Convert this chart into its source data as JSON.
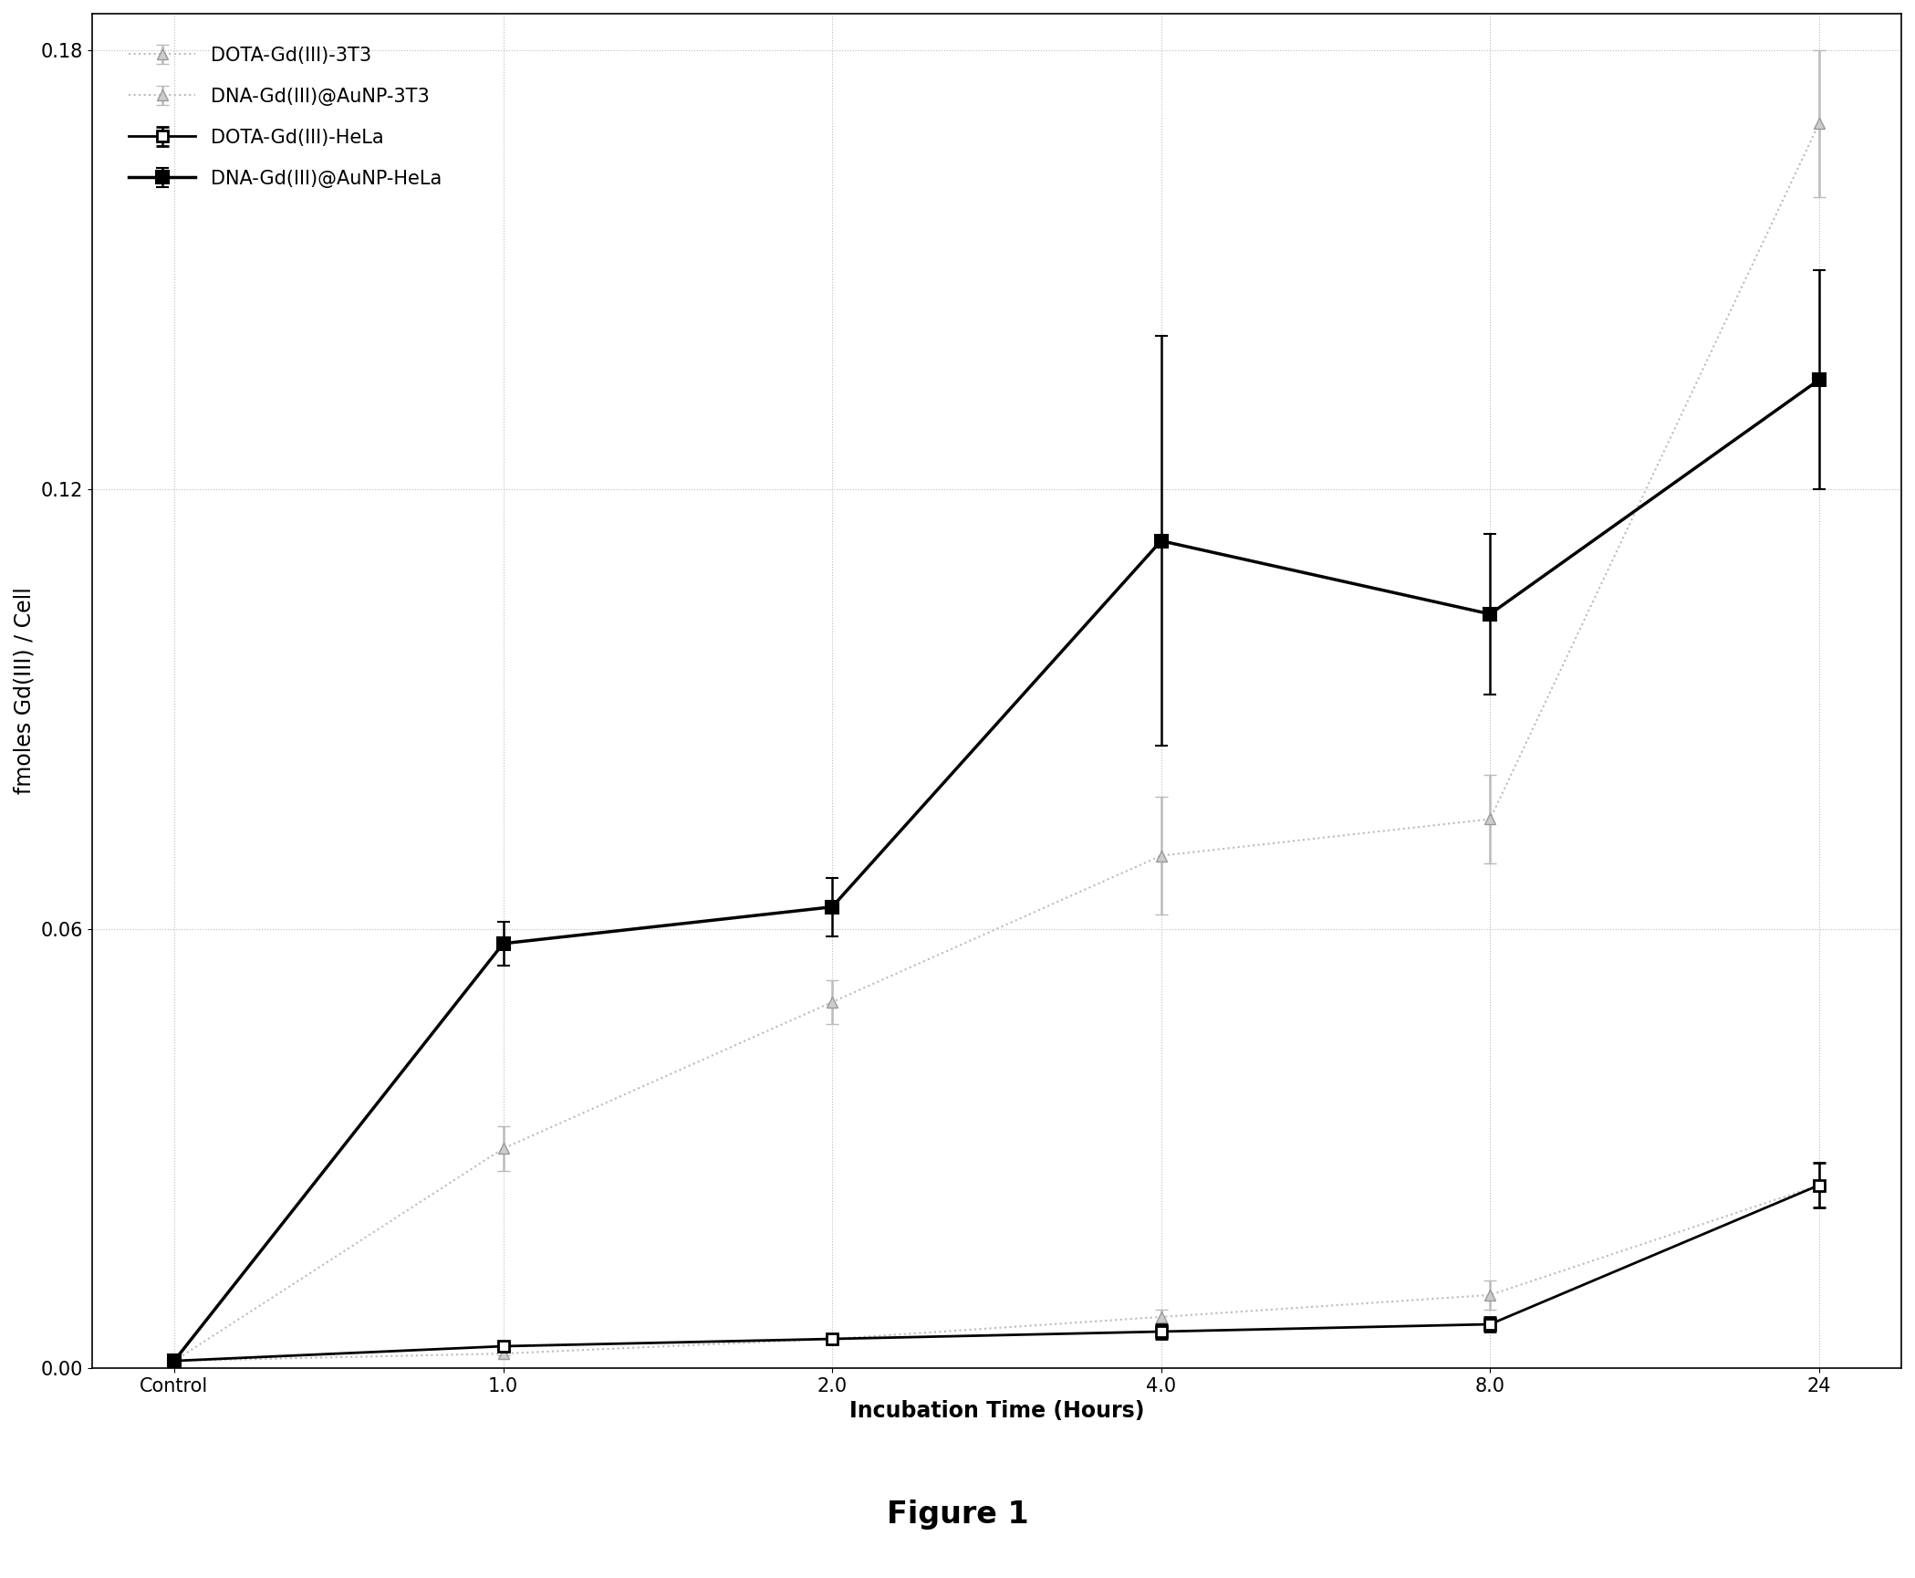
{
  "x_positions": [
    0,
    1,
    2,
    3,
    4,
    5
  ],
  "x_labels": [
    "Control",
    "1.0",
    "2.0",
    "4.0",
    "8.0",
    "24"
  ],
  "xlabel": "Incubation Time (Hours)",
  "ylabel": "fmoles Gd(III) / Cell",
  "ylim": [
    0.0,
    0.185
  ],
  "yticks": [
    0.0,
    0.06,
    0.12,
    0.18
  ],
  "title": "Figure 1",
  "background_color": "#ffffff",
  "series": [
    {
      "label": "DOTA-Gd(III)-3T3",
      "y": [
        0.001,
        0.002,
        0.004,
        0.007,
        0.01,
        0.025
      ],
      "yerr": [
        0.0003,
        0.0003,
        0.0005,
        0.001,
        0.002,
        0.003
      ],
      "color": "#bbbbbb",
      "linestyle": "dotted",
      "linewidth": 1.5,
      "marker": "^",
      "markersize": 8,
      "markerfacecolor": "#cccccc",
      "markeredgecolor": "#999999",
      "markeredgewidth": 1.0,
      "zorder": 2
    },
    {
      "label": "DNA-Gd(III)@AuNP-3T3",
      "y": [
        0.001,
        0.03,
        0.05,
        0.07,
        0.075,
        0.17
      ],
      "yerr": [
        0.0003,
        0.003,
        0.003,
        0.008,
        0.006,
        0.01
      ],
      "color": "#bbbbbb",
      "linestyle": "dotted",
      "linewidth": 1.5,
      "marker": "^",
      "markersize": 8,
      "markerfacecolor": "#cccccc",
      "markeredgecolor": "#999999",
      "markeredgewidth": 1.0,
      "zorder": 2
    },
    {
      "label": "DOTA-Gd(III)-HeLa",
      "y": [
        0.001,
        0.003,
        0.004,
        0.005,
        0.006,
        0.025
      ],
      "yerr": [
        0.0003,
        0.0005,
        0.0005,
        0.001,
        0.001,
        0.003
      ],
      "color": "#000000",
      "linestyle": "solid",
      "linewidth": 2.0,
      "marker": "s",
      "markersize": 9,
      "markerfacecolor": "#ffffff",
      "markeredgecolor": "#000000",
      "markeredgewidth": 2.0,
      "zorder": 3
    },
    {
      "label": "DNA-Gd(III)@AuNP-HeLa",
      "y": [
        0.001,
        0.058,
        0.063,
        0.113,
        0.103,
        0.135
      ],
      "yerr": [
        0.0003,
        0.003,
        0.004,
        0.028,
        0.011,
        0.015
      ],
      "color": "#000000",
      "linestyle": "solid",
      "linewidth": 2.5,
      "marker": "s",
      "markersize": 10,
      "markerfacecolor": "#000000",
      "markeredgecolor": "#000000",
      "markeredgewidth": 1.5,
      "zorder": 4
    }
  ],
  "legend_loc": "upper left",
  "legend_fontsize": 15,
  "axis_label_fontsize": 17,
  "tick_fontsize": 15,
  "title_fontsize": 24,
  "grid_linestyle": "dotted",
  "grid_color": "#bbbbbb",
  "grid_linewidth": 0.8
}
